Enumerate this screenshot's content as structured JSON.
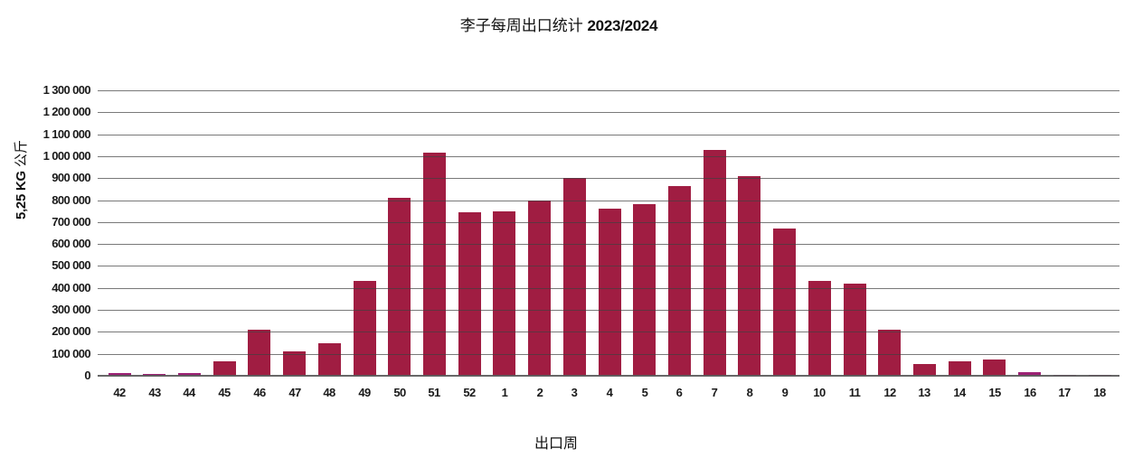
{
  "title": {
    "main": "李子每周出口统计",
    "season": "2023/2024"
  },
  "y_axis": {
    "label_value": "5,25 KG",
    "label_unit": "公斤",
    "ticks": [
      "1 300 000",
      "1 200 000",
      "1 100 000",
      "1 000 000",
      "900 000",
      "800 000",
      "700 000",
      "600 000",
      "500 000",
      "400 000",
      "300 000",
      "200 000",
      "100 000",
      "0"
    ]
  },
  "x_axis": {
    "label": "出口周"
  },
  "chart_data": {
    "type": "bar",
    "title": "李子每周出口统计 2023/2024",
    "xlabel": "出口周",
    "ylabel": "5,25 KG 公斤",
    "ylim": [
      0,
      1300000
    ],
    "grid": true,
    "legend": "none",
    "categories": [
      "42",
      "43",
      "44",
      "45",
      "46",
      "47",
      "48",
      "49",
      "50",
      "51",
      "52",
      "1",
      "2",
      "3",
      "4",
      "5",
      "6",
      "7",
      "8",
      "9",
      "10",
      "11",
      "12",
      "13",
      "14",
      "15",
      "16",
      "17",
      "18"
    ],
    "values": [
      12000,
      10000,
      12000,
      65000,
      210000,
      112000,
      150000,
      430000,
      810000,
      1015000,
      745000,
      750000,
      800000,
      900000,
      760000,
      780000,
      865000,
      1030000,
      910000,
      670000,
      430000,
      420000,
      210000,
      52000,
      67000,
      76000,
      15000,
      3000,
      3000
    ],
    "bar_color_keys": [
      "secondary",
      "secondary",
      "secondary",
      "primary",
      "primary",
      "primary",
      "primary",
      "primary",
      "primary",
      "primary",
      "primary",
      "primary",
      "primary",
      "primary",
      "primary",
      "primary",
      "primary",
      "primary",
      "primary",
      "primary",
      "primary",
      "primary",
      "primary",
      "primary",
      "primary",
      "primary",
      "secondary",
      "secondary",
      "secondary"
    ],
    "palette": {
      "primary": "#A01D42",
      "secondary": "#9C2074"
    },
    "gridline_color": "#707070"
  }
}
